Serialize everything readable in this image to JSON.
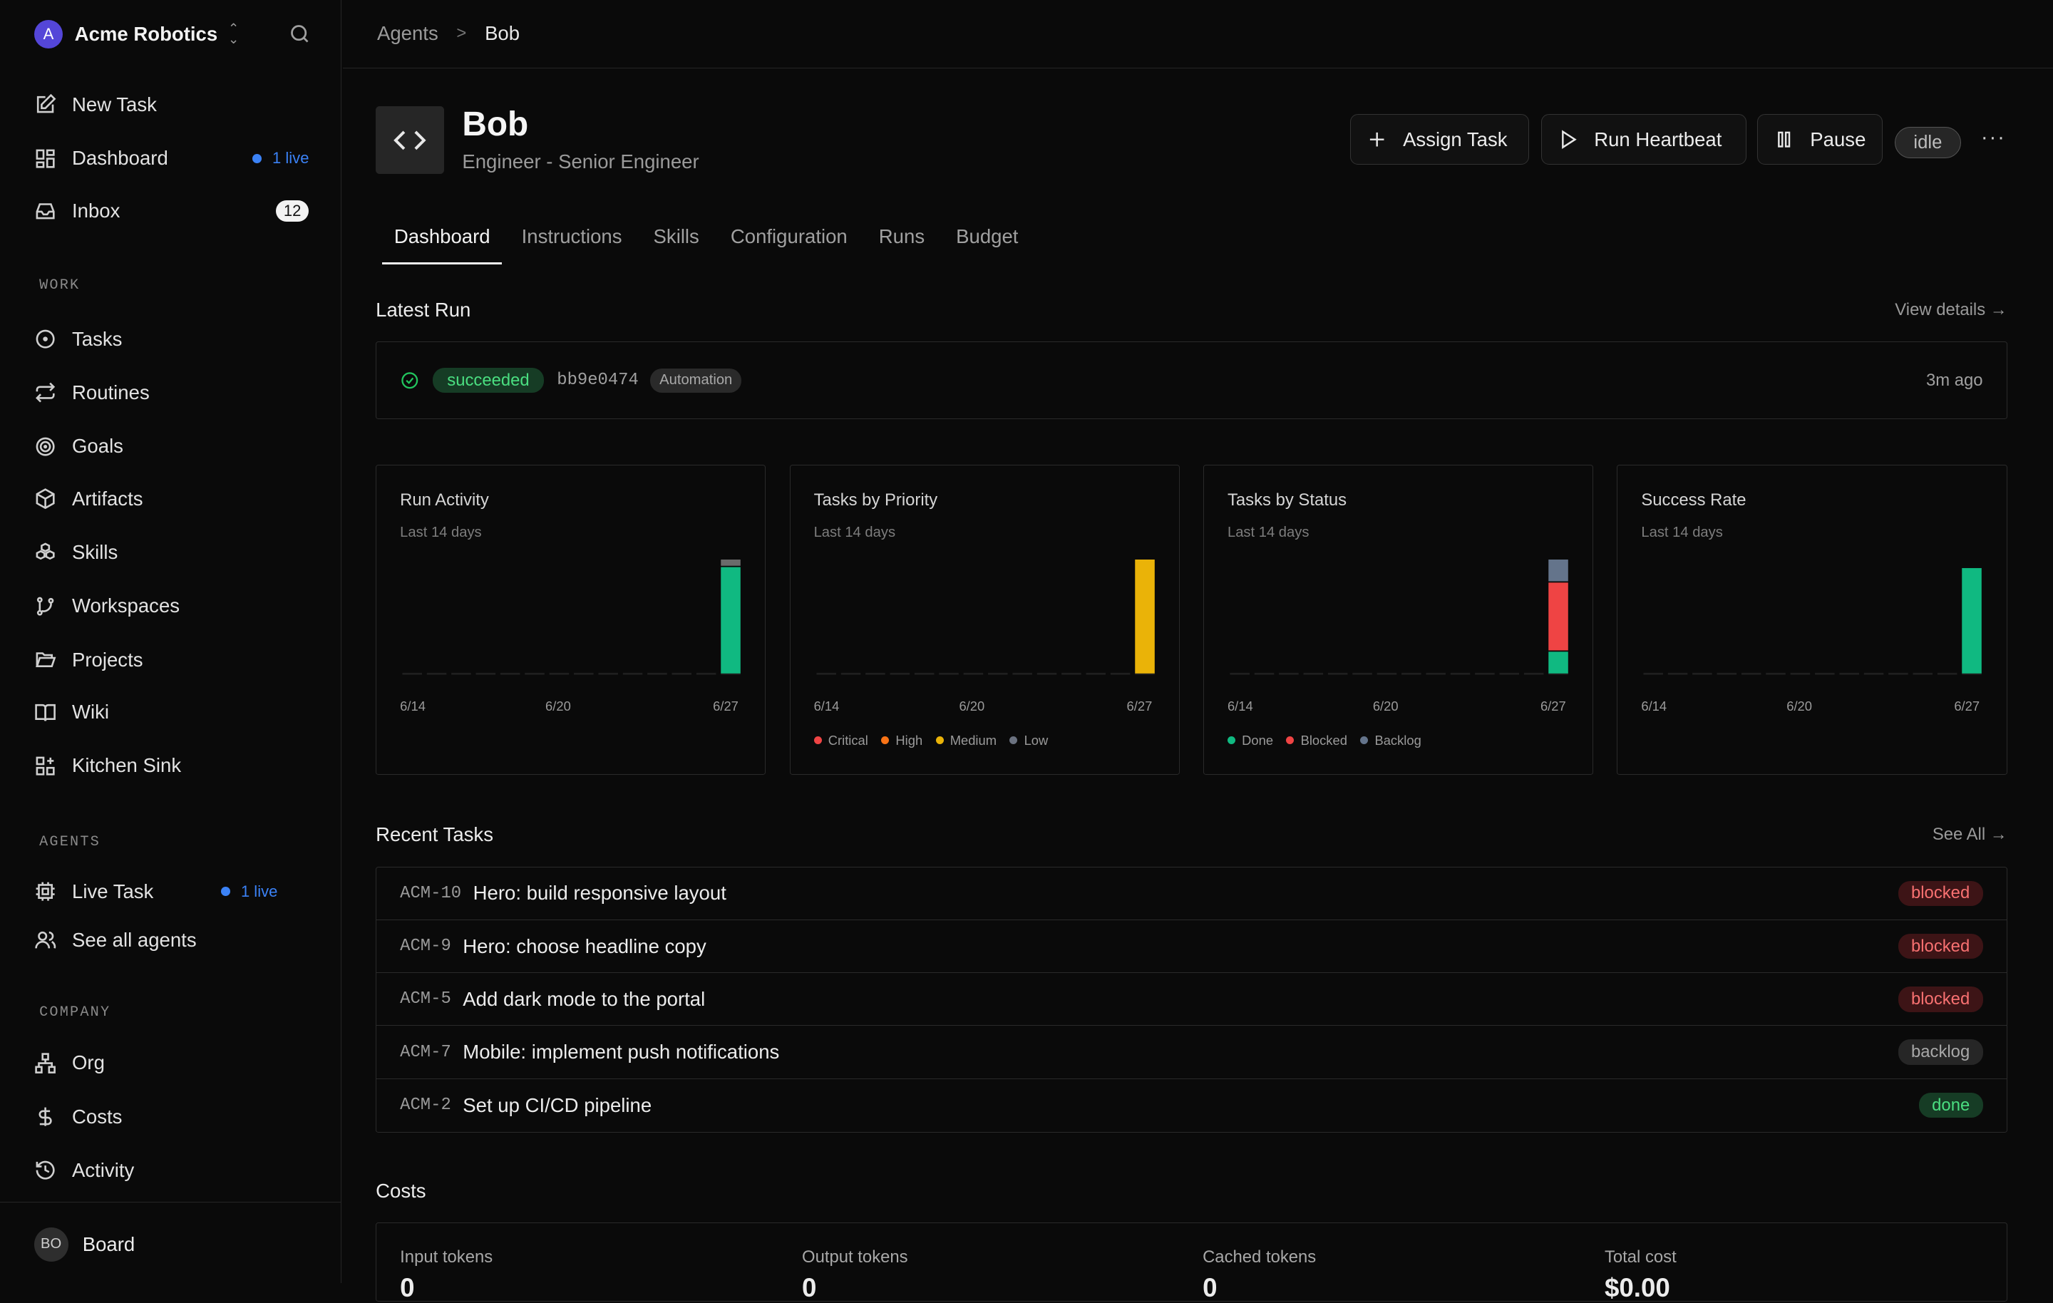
{
  "workspace": {
    "initial": "A",
    "name": "Acme Robotics"
  },
  "nav": {
    "new_task": "New Task",
    "dashboard": "Dashboard",
    "dashboard_live": "1 live",
    "inbox": "Inbox",
    "inbox_count": "12",
    "work_label": "WORK",
    "tasks": "Tasks",
    "routines": "Routines",
    "goals": "Goals",
    "artifacts": "Artifacts",
    "skills": "Skills",
    "workspaces": "Workspaces",
    "projects": "Projects",
    "wiki": "Wiki",
    "kitchen_sink": "Kitchen Sink",
    "agents_label": "AGENTS",
    "live_task": "Live Task",
    "live_task_live": "1 live",
    "see_all_agents": "See all agents",
    "company_label": "COMPANY",
    "org": "Org",
    "costs": "Costs",
    "activity": "Activity"
  },
  "footer": {
    "initials": "BO",
    "name": "Board"
  },
  "breadcrumb": {
    "parent": "Agents",
    "current": "Bob"
  },
  "agent": {
    "name": "Bob",
    "role": "Engineer - Senior Engineer",
    "status": "idle"
  },
  "actions": {
    "assign": "Assign Task",
    "heartbeat": "Run Heartbeat",
    "pause": "Pause",
    "more": "···"
  },
  "tabs": [
    "Dashboard",
    "Instructions",
    "Skills",
    "Configuration",
    "Runs",
    "Budget"
  ],
  "latest_run": {
    "heading": "Latest Run",
    "view_details": "View details →",
    "status": "succeeded",
    "hash": "bb9e0474",
    "tag": "Automation",
    "ago": "3m ago"
  },
  "colors": {
    "green": "#10b981",
    "yellow": "#eab308",
    "red": "#ef4444",
    "slate": "#64748b",
    "grey": "#6b6b6b",
    "orange": "#f97316"
  },
  "chart_data": [
    {
      "type": "bar",
      "title": "Run Activity",
      "subtitle": "Last 14 days",
      "x_ticks": [
        "6/14",
        "6/20",
        "6/27"
      ],
      "categories": [
        "6/14",
        "6/15",
        "6/16",
        "6/17",
        "6/18",
        "6/19",
        "6/20",
        "6/21",
        "6/22",
        "6/23",
        "6/24",
        "6/25",
        "6/26",
        "6/27"
      ],
      "stacked": true,
      "series": [
        {
          "color": "#10b981",
          "values": [
            0,
            0,
            0,
            0,
            0,
            0,
            0,
            0,
            0,
            0,
            0,
            0,
            0,
            10
          ]
        },
        {
          "color": "#6b6b6b",
          "values": [
            0,
            0,
            0,
            0,
            0,
            0,
            0,
            0,
            0,
            0,
            0,
            0,
            0,
            0.7
          ]
        }
      ]
    },
    {
      "type": "bar",
      "title": "Tasks by Priority",
      "subtitle": "Last 14 days",
      "x_ticks": [
        "6/14",
        "6/20",
        "6/27"
      ],
      "categories": [
        "6/14",
        "6/15",
        "6/16",
        "6/17",
        "6/18",
        "6/19",
        "6/20",
        "6/21",
        "6/22",
        "6/23",
        "6/24",
        "6/25",
        "6/26",
        "6/27"
      ],
      "stacked": true,
      "legend": [
        "Critical",
        "High",
        "Medium",
        "Low"
      ],
      "series": [
        {
          "name": "Critical",
          "color": "#ef4444",
          "values": [
            0,
            0,
            0,
            0,
            0,
            0,
            0,
            0,
            0,
            0,
            0,
            0,
            0,
            0
          ]
        },
        {
          "name": "High",
          "color": "#f97316",
          "values": [
            0,
            0,
            0,
            0,
            0,
            0,
            0,
            0,
            0,
            0,
            0,
            0,
            0,
            0
          ]
        },
        {
          "name": "Medium",
          "color": "#eab308",
          "values": [
            0,
            0,
            0,
            0,
            0,
            0,
            0,
            0,
            0,
            0,
            0,
            0,
            0,
            5
          ]
        },
        {
          "name": "Low",
          "color": "#6b7280",
          "values": [
            0,
            0,
            0,
            0,
            0,
            0,
            0,
            0,
            0,
            0,
            0,
            0,
            0,
            0
          ]
        }
      ]
    },
    {
      "type": "bar",
      "title": "Tasks by Status",
      "subtitle": "Last 14 days",
      "x_ticks": [
        "6/14",
        "6/20",
        "6/27"
      ],
      "categories": [
        "6/14",
        "6/15",
        "6/16",
        "6/17",
        "6/18",
        "6/19",
        "6/20",
        "6/21",
        "6/22",
        "6/23",
        "6/24",
        "6/25",
        "6/26",
        "6/27"
      ],
      "stacked": true,
      "legend": [
        "Done",
        "Blocked",
        "Backlog"
      ],
      "series": [
        {
          "name": "Done",
          "color": "#10b981",
          "values": [
            0,
            0,
            0,
            0,
            0,
            0,
            0,
            0,
            0,
            0,
            0,
            0,
            0,
            1
          ]
        },
        {
          "name": "Blocked",
          "color": "#ef4444",
          "values": [
            0,
            0,
            0,
            0,
            0,
            0,
            0,
            0,
            0,
            0,
            0,
            0,
            0,
            3
          ]
        },
        {
          "name": "Backlog",
          "color": "#64748b",
          "values": [
            0,
            0,
            0,
            0,
            0,
            0,
            0,
            0,
            0,
            0,
            0,
            0,
            0,
            1
          ]
        }
      ]
    },
    {
      "type": "bar",
      "title": "Success Rate",
      "subtitle": "Last 14 days",
      "x_ticks": [
        "6/14",
        "6/20",
        "6/27"
      ],
      "categories": [
        "6/14",
        "6/15",
        "6/16",
        "6/17",
        "6/18",
        "6/19",
        "6/20",
        "6/21",
        "6/22",
        "6/23",
        "6/24",
        "6/25",
        "6/26",
        "6/27"
      ],
      "stacked": true,
      "series": [
        {
          "color": "#10b981",
          "values": [
            0,
            0,
            0,
            0,
            0,
            0,
            0,
            0,
            0,
            0,
            0,
            0,
            0,
            1
          ]
        }
      ],
      "ylim": [
        0,
        1.08
      ]
    }
  ],
  "recent_tasks": {
    "heading": "Recent Tasks",
    "see_all": "See All →",
    "rows": [
      {
        "id": "ACM-10",
        "title": "Hero: build responsive layout",
        "status": "blocked"
      },
      {
        "id": "ACM-9",
        "title": "Hero: choose headline copy",
        "status": "blocked"
      },
      {
        "id": "ACM-5",
        "title": "Add dark mode to the portal",
        "status": "blocked"
      },
      {
        "id": "ACM-7",
        "title": "Mobile: implement push notifications",
        "status": "backlog"
      },
      {
        "id": "ACM-2",
        "title": "Set up CI/CD pipeline",
        "status": "done"
      }
    ]
  },
  "costs": {
    "heading": "Costs",
    "input_label": "Input tokens",
    "input_value": "0",
    "output_label": "Output tokens",
    "output_value": "0",
    "cached_label": "Cached tokens",
    "cached_value": "0",
    "total_label": "Total cost",
    "total_value": "$0.00"
  }
}
